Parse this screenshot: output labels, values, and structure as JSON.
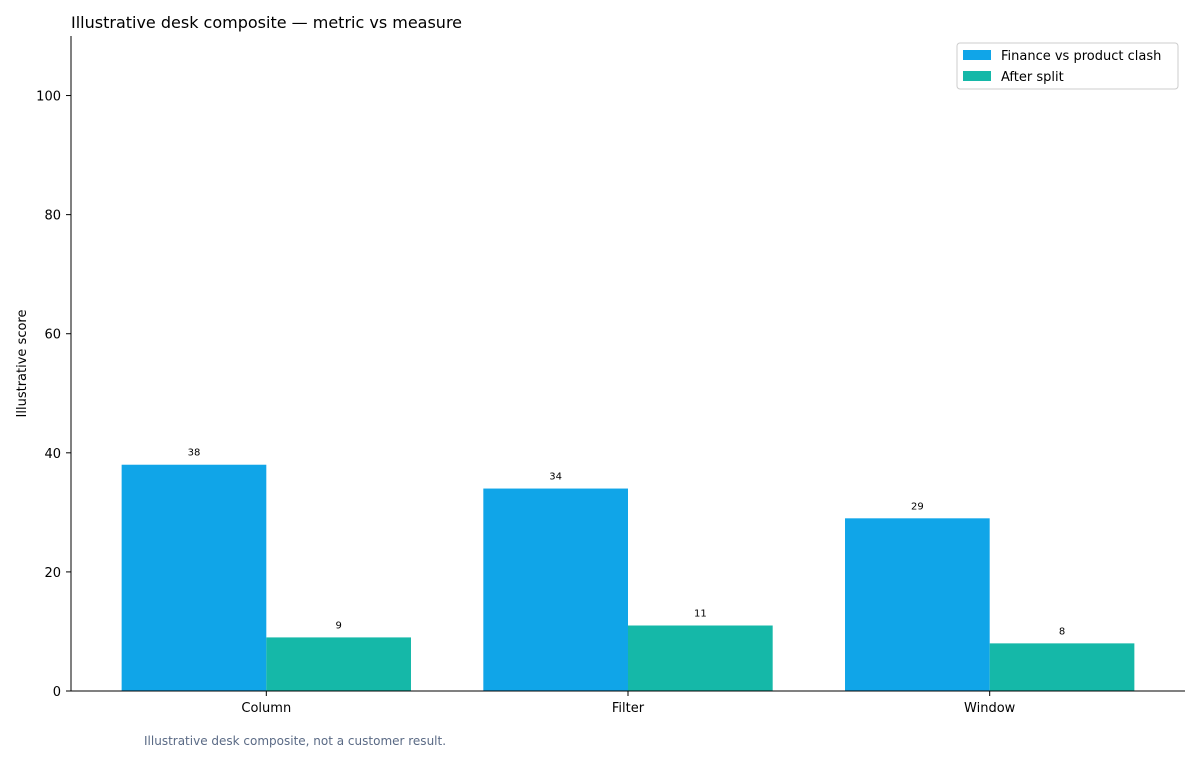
{
  "chart_data": {
    "type": "bar",
    "title": "Illustrative desk composite — metric vs measure",
    "xlabel": "",
    "ylabel": "Illustrative score",
    "categories": [
      "Column",
      "Filter",
      "Window"
    ],
    "series": [
      {
        "name": "Finance vs product clash",
        "values": [
          38,
          34,
          29
        ],
        "color": "#10a5e8"
      },
      {
        "name": "After split",
        "values": [
          9,
          11,
          8
        ],
        "color": "#15b8a8"
      }
    ],
    "ylim": [
      0,
      110
    ],
    "yticks": [
      0,
      20,
      40,
      60,
      80,
      100
    ],
    "grid": false,
    "legend_position": "top-right",
    "footnote": "Illustrative desk composite, not a customer result."
  }
}
